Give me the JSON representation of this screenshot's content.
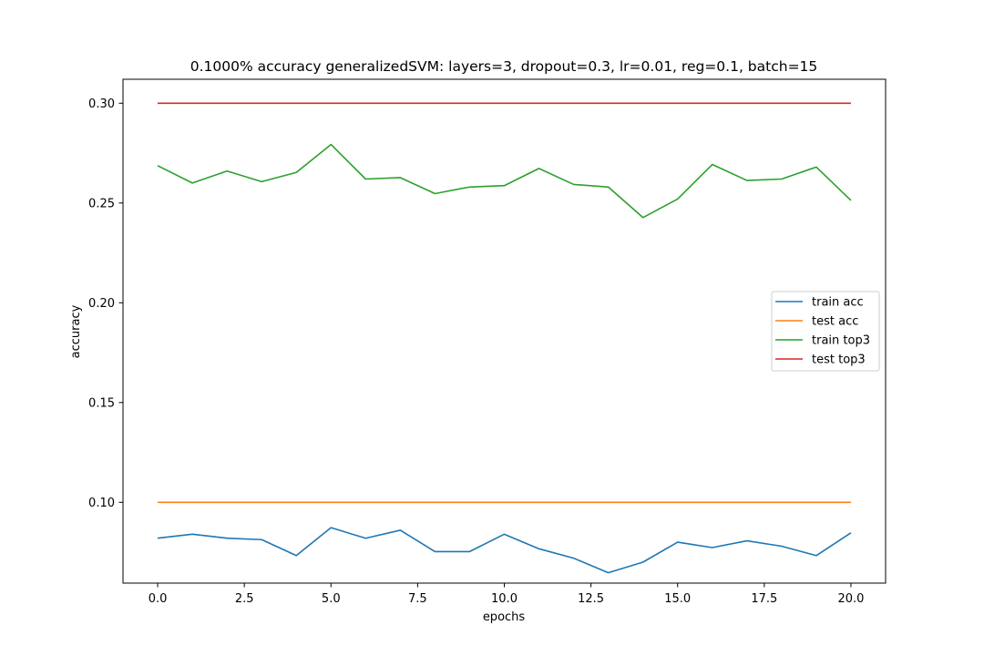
{
  "chart_data": {
    "type": "line",
    "title": "0.1000% accuracy generalizedSVM: layers=3, dropout=0.3, lr=0.01, reg=0.1, batch=15",
    "xlabel": "epochs",
    "ylabel": "accuracy",
    "xlim": [
      -1.0,
      21.0
    ],
    "ylim": [
      0.0595,
      0.312
    ],
    "xticks": [
      0.0,
      2.5,
      5.0,
      7.5,
      10.0,
      12.5,
      15.0,
      17.5,
      20.0
    ],
    "xtick_labels": [
      "0.0",
      "2.5",
      "5.0",
      "7.5",
      "10.0",
      "12.5",
      "15.0",
      "17.5",
      "20.0"
    ],
    "yticks": [
      0.1,
      0.15,
      0.2,
      0.25,
      0.3
    ],
    "ytick_labels": [
      "0.10",
      "0.15",
      "0.20",
      "0.25",
      "0.30"
    ],
    "grid": false,
    "legend_position": "center-right",
    "x": [
      0,
      1,
      2,
      3,
      4,
      5,
      6,
      7,
      8,
      9,
      10,
      11,
      12,
      13,
      14,
      15,
      16,
      17,
      18,
      19,
      20
    ],
    "series": [
      {
        "name": "train acc",
        "color": "#1f77b4",
        "values": [
          0.082,
          0.084,
          0.082,
          0.0813,
          0.0733,
          0.0873,
          0.082,
          0.086,
          0.0753,
          0.0753,
          0.084,
          0.0767,
          0.072,
          0.0647,
          0.07,
          0.08,
          0.0773,
          0.0807,
          0.078,
          0.0733,
          0.0847
        ]
      },
      {
        "name": "test acc",
        "color": "#ff7f0e",
        "values": [
          0.1,
          0.1,
          0.1,
          0.1,
          0.1,
          0.1,
          0.1,
          0.1,
          0.1,
          0.1,
          0.1,
          0.1,
          0.1,
          0.1,
          0.1,
          0.1,
          0.1,
          0.1,
          0.1,
          0.1,
          0.1
        ]
      },
      {
        "name": "train top3",
        "color": "#2ca02c",
        "values": [
          0.2687,
          0.26,
          0.266,
          0.2607,
          0.2653,
          0.2793,
          0.262,
          0.2627,
          0.2547,
          0.258,
          0.2587,
          0.2673,
          0.2593,
          0.258,
          0.2427,
          0.252,
          0.2693,
          0.2613,
          0.262,
          0.268,
          0.2513
        ]
      },
      {
        "name": "test top3",
        "color": "#d62728",
        "values": [
          0.3,
          0.3,
          0.3,
          0.3,
          0.3,
          0.3,
          0.3,
          0.3,
          0.3,
          0.3,
          0.3,
          0.3,
          0.3,
          0.3,
          0.3,
          0.3,
          0.3,
          0.3,
          0.3,
          0.3,
          0.3
        ]
      }
    ]
  }
}
